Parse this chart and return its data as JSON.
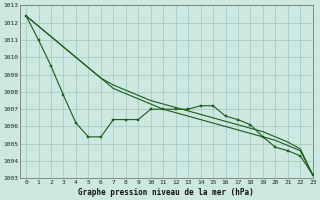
{
  "title": "Graphe pression niveau de la mer (hPa)",
  "bg_color": "#cce8e0",
  "grid_color": "#aaccc4",
  "line_color": "#1a5c1a",
  "x_values": [
    0,
    1,
    2,
    3,
    4,
    5,
    6,
    7,
    8,
    9,
    10,
    11,
    12,
    13,
    14,
    15,
    16,
    17,
    18,
    19,
    20,
    21,
    22,
    23
  ],
  "line_straight1": [
    1012.4,
    1011.8,
    1011.2,
    1010.6,
    1010.0,
    1009.4,
    1008.8,
    1008.2,
    1007.9,
    1007.6,
    1007.3,
    1007.0,
    1006.8,
    1006.6,
    1006.4,
    1006.2,
    1006.0,
    1005.8,
    1005.6,
    1005.4,
    1005.2,
    1004.9,
    1004.6,
    1003.2
  ],
  "line_straight2": [
    1012.4,
    1011.8,
    1011.2,
    1010.6,
    1010.0,
    1009.4,
    1008.8,
    1008.4,
    1008.1,
    1007.8,
    1007.5,
    1007.3,
    1007.1,
    1006.9,
    1006.7,
    1006.5,
    1006.3,
    1006.1,
    1005.9,
    1005.7,
    1005.4,
    1005.1,
    1004.7,
    1003.2
  ],
  "line_zigzag_x": [
    0,
    1,
    2,
    3,
    4,
    5,
    6,
    7,
    8,
    9,
    10,
    11,
    12,
    13,
    14,
    15,
    16,
    17,
    18,
    19,
    20,
    21,
    22,
    23
  ],
  "line_zigzag": [
    1012.4,
    1011.0,
    1009.5,
    1007.8,
    1006.2,
    1005.4,
    1005.4,
    1006.4,
    1006.4,
    1006.4,
    1007.0,
    1007.0,
    1007.0,
    1007.0,
    1007.2,
    1007.2,
    1006.6,
    1006.4,
    1006.1,
    1005.4,
    1004.8,
    1004.6,
    1004.3,
    1003.2
  ],
  "ylim": [
    1003,
    1013
  ],
  "xlim": [
    -0.5,
    23
  ],
  "yticks": [
    1003,
    1004,
    1005,
    1006,
    1007,
    1008,
    1009,
    1010,
    1011,
    1012,
    1013
  ],
  "xticks": [
    0,
    1,
    2,
    3,
    4,
    5,
    6,
    7,
    8,
    9,
    10,
    11,
    12,
    13,
    14,
    15,
    16,
    17,
    18,
    19,
    20,
    21,
    22,
    23
  ]
}
